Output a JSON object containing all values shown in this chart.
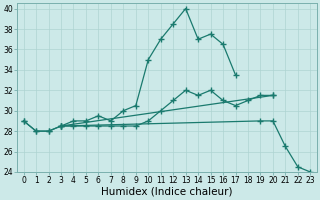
{
  "xlabel": "Humidex (Indice chaleur)",
  "xlim": [
    -0.5,
    23.5
  ],
  "ylim": [
    24,
    40.5
  ],
  "yticks": [
    24,
    26,
    28,
    30,
    32,
    34,
    36,
    38,
    40
  ],
  "xticks": [
    0,
    1,
    2,
    3,
    4,
    5,
    6,
    7,
    8,
    9,
    10,
    11,
    12,
    13,
    14,
    15,
    16,
    17,
    18,
    19,
    20,
    21,
    22,
    23
  ],
  "background_color": "#cce9e8",
  "grid_color": "#aed4d2",
  "line_color": "#1a7a6e",
  "lines": [
    {
      "x": [
        0,
        1,
        2,
        3,
        4,
        5,
        6,
        7,
        8,
        9,
        10,
        11,
        12,
        13,
        14,
        15,
        16,
        17
      ],
      "y": [
        29.0,
        28.0,
        28.0,
        28.5,
        29.0,
        29.0,
        29.5,
        29.0,
        30.0,
        30.5,
        35.0,
        37.0,
        38.5,
        40.0,
        37.0,
        37.5,
        36.5,
        33.5
      ]
    },
    {
      "x": [
        0,
        1,
        2,
        3,
        4,
        5,
        6,
        7,
        8,
        9,
        10,
        11,
        12,
        13,
        14,
        15,
        16,
        17,
        18,
        19,
        20
      ],
      "y": [
        29.0,
        28.0,
        28.0,
        28.5,
        28.5,
        28.5,
        28.5,
        28.5,
        28.5,
        28.5,
        29.0,
        30.0,
        31.0,
        32.0,
        31.5,
        32.0,
        31.0,
        30.5,
        31.0,
        31.5,
        31.5
      ]
    },
    {
      "x": [
        3,
        20
      ],
      "y": [
        28.5,
        31.5
      ]
    },
    {
      "x": [
        3,
        19,
        20,
        21,
        22,
        23
      ],
      "y": [
        28.5,
        29.0,
        29.0,
        26.5,
        24.5,
        24.0
      ]
    }
  ],
  "marker": "+",
  "markersize": 4,
  "markeredgewidth": 1.0,
  "linewidth": 0.9,
  "tick_fontsize": 5.5,
  "xlabel_fontsize": 7.5
}
